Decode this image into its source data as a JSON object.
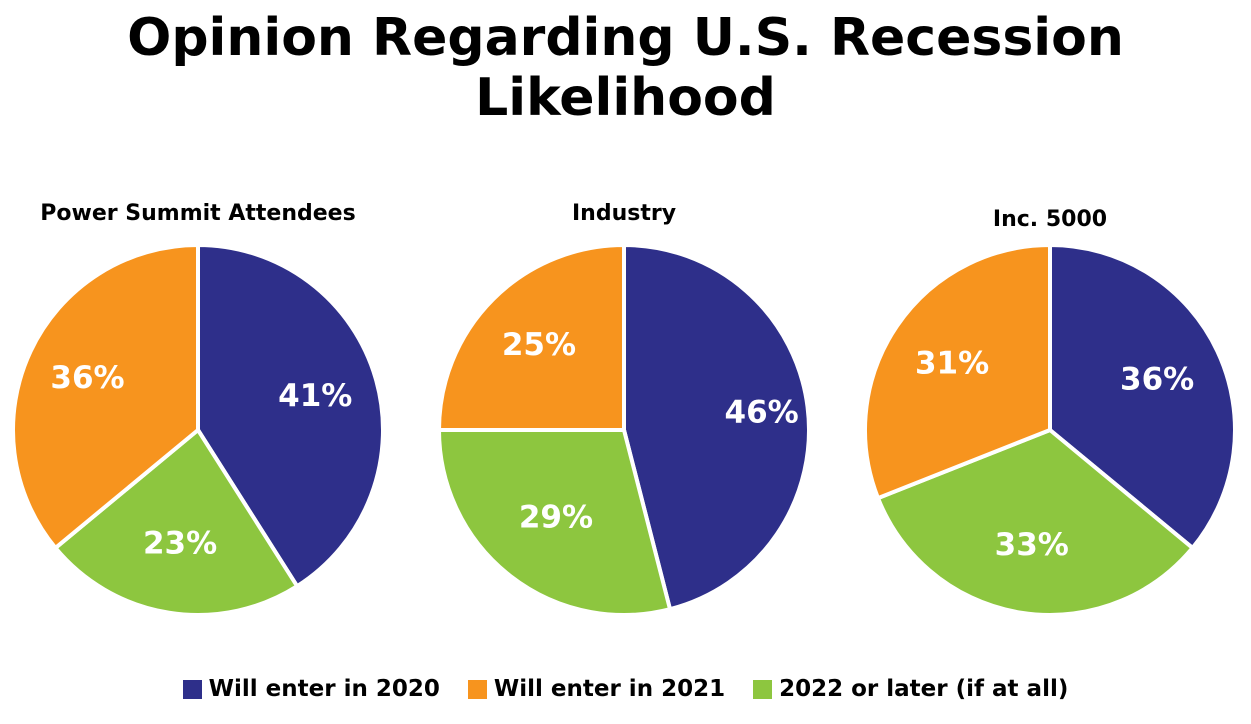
{
  "title_line1": "Opinion Regarding U.S. Recession",
  "title_line2": "Likelihood",
  "colors": {
    "Will enter in 2020": "#2e2f8a",
    "Will enter in 2021": "#f7941e",
    "2022 or later (if at all)": "#8dc63f"
  },
  "legend": [
    {
      "label": "Will enter in 2020",
      "color": "#2e2f8a"
    },
    {
      "label": "Will enter in 2021",
      "color": "#f7941e"
    },
    {
      "label": "2022 or later (if at all)",
      "color": "#8dc63f"
    }
  ],
  "chart_data": [
    {
      "type": "pie",
      "title": "Power Summit Attendees",
      "categories": [
        "Will enter in 2020",
        "2022 or later (if at all)",
        "Will enter in 2021"
      ],
      "values": [
        41,
        23,
        36
      ],
      "labels": [
        "41%",
        "23%",
        "36%"
      ]
    },
    {
      "type": "pie",
      "title": "Industry",
      "categories": [
        "Will enter in 2020",
        "2022 or later (if at all)",
        "Will enter in 2021"
      ],
      "values": [
        46,
        29,
        25
      ],
      "labels": [
        "46%",
        "29%",
        "25%"
      ]
    },
    {
      "type": "pie",
      "title": "Inc. 5000",
      "categories": [
        "Will enter in 2020",
        "2022 or later (if at all)",
        "Will enter in 2021"
      ],
      "values": [
        36,
        33,
        31
      ],
      "labels": [
        "36%",
        "33%",
        "31%"
      ]
    }
  ]
}
